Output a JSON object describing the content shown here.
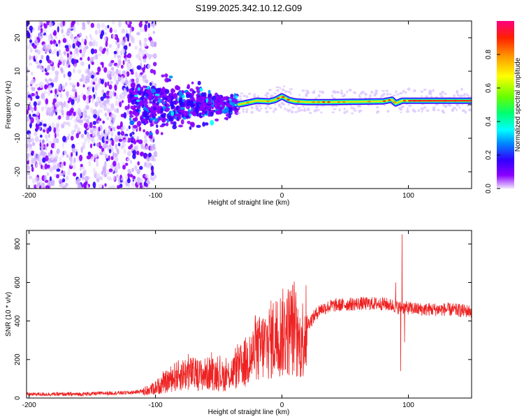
{
  "title": "S199.2025.342.10.12.G09",
  "spectrogram": {
    "type": "heatmap",
    "xlabel": "Height of straight line (km)",
    "ylabel": "Frequency (Hz)",
    "xlim": [
      -202,
      150
    ],
    "ylim": [
      -25,
      25
    ],
    "x_ticks": [
      -200,
      -100,
      0,
      100
    ],
    "y_ticks": [
      -20,
      -10,
      0,
      10,
      20
    ],
    "colorbar": {
      "label": "Normalized spectral amplitude",
      "range": [
        0,
        1
      ],
      "ticks": [
        "0.0",
        "0.2",
        "0.4",
        "0.6",
        "0.8"
      ],
      "colors": [
        "#f0e6ff",
        "#8a00ff",
        "#3000ff",
        "#0088ff",
        "#00ffff",
        "#00ff70",
        "#6aff00",
        "#ffff00",
        "#ffa000",
        "#ff2000",
        "#ff0080"
      ]
    },
    "ridge": {
      "start_km": -35,
      "points": [
        [
          -35,
          0.0
        ],
        [
          -20,
          1.2
        ],
        [
          -10,
          1.0
        ],
        [
          -5,
          1.5
        ],
        [
          0,
          2.5
        ],
        [
          5,
          1.5
        ],
        [
          10,
          1.0
        ],
        [
          20,
          0.8
        ],
        [
          40,
          0.8
        ],
        [
          60,
          0.9
        ],
        [
          80,
          1.0
        ],
        [
          87,
          1.5
        ],
        [
          90,
          0.4
        ],
        [
          95,
          1.2
        ],
        [
          150,
          1.2
        ]
      ]
    }
  },
  "snr": {
    "type": "line",
    "xlabel": "Height of straight line (km)",
    "ylabel": "SNR (10 * v/v)",
    "xlim": [
      -202,
      150
    ],
    "ylim": [
      0,
      870
    ],
    "x_ticks": [
      -200,
      -100,
      0,
      100
    ],
    "y_ticks": [
      0,
      200,
      400,
      600,
      800
    ],
    "color": "#ee2222",
    "envelope": [
      [
        -202,
        20
      ],
      [
        -160,
        20
      ],
      [
        -140,
        25
      ],
      [
        -120,
        28
      ],
      [
        -105,
        40
      ],
      [
        -95,
        70
      ],
      [
        -85,
        110
      ],
      [
        -75,
        130
      ],
      [
        -65,
        120
      ],
      [
        -55,
        130
      ],
      [
        -45,
        110
      ],
      [
        -35,
        150
      ],
      [
        -27,
        200
      ],
      [
        -15,
        270
      ],
      [
        -5,
        320
      ],
      [
        5,
        350
      ],
      [
        10,
        370
      ],
      [
        12,
        260
      ],
      [
        15,
        290
      ],
      [
        20,
        380
      ],
      [
        30,
        460
      ],
      [
        40,
        480
      ],
      [
        60,
        490
      ],
      [
        80,
        490
      ],
      [
        88,
        480
      ],
      [
        92,
        470
      ],
      [
        96,
        470
      ],
      [
        110,
        460
      ],
      [
        130,
        460
      ],
      [
        150,
        450
      ]
    ],
    "spikes": [
      [
        -29,
        60
      ],
      [
        -14,
        300
      ],
      [
        0,
        390
      ],
      [
        11,
        550
      ],
      [
        14,
        235
      ],
      [
        90,
        600
      ],
      [
        94,
        140
      ],
      [
        95,
        850
      ],
      [
        97,
        290
      ]
    ]
  }
}
